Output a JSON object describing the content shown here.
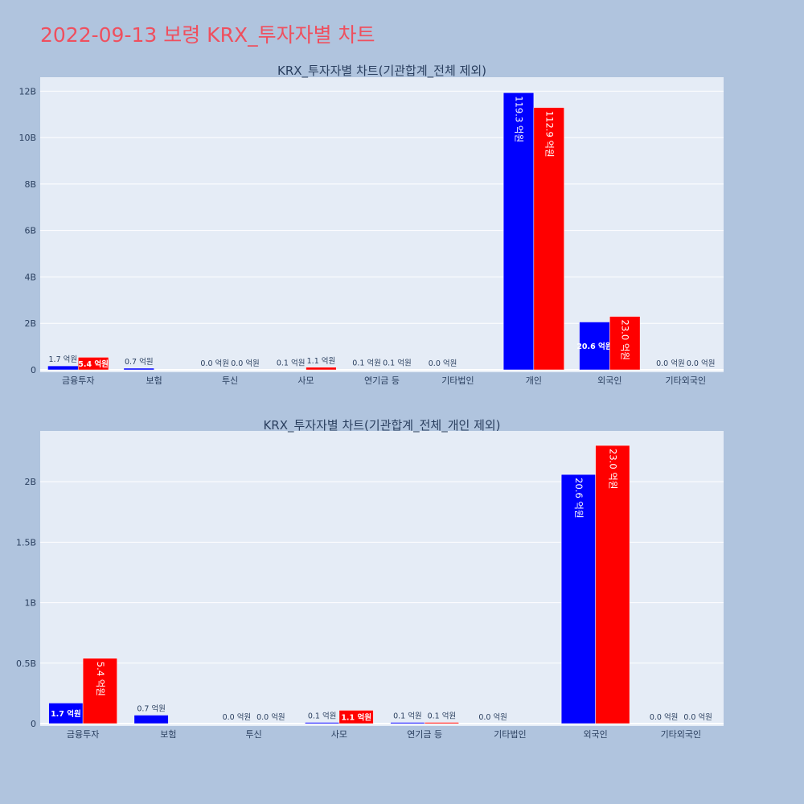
{
  "page": {
    "title": "2022-09-13 보령 KRX_투자자별 차트"
  },
  "colors": {
    "background": "#b0c4de",
    "plot_bg": "#e5ecf6",
    "title": "#ef4f5e",
    "series_a": "#0000ff",
    "series_b": "#ff0000"
  },
  "chart_data": [
    {
      "type": "bar",
      "title": "KRX_투자자별 차트(기관합계_전체 제외)",
      "categories": [
        "금융투자",
        "보험",
        "투신",
        "사모",
        "연기금 등",
        "기타법인",
        "개인",
        "외국인",
        "기타외국인"
      ],
      "series": [
        {
          "color": "#0000ff",
          "values": [
            0.17,
            0.07,
            0.0,
            0.01,
            0.01,
            0.0,
            11.93,
            2.06,
            0.0
          ],
          "labels": [
            "1.7 억원",
            "0.7 억원",
            "0.0 억원",
            "0.1 억원",
            "0.1 억원",
            "0.0 억원",
            "119.3 억원",
            "20.6 억원",
            "0.0 억원"
          ]
        },
        {
          "color": "#ff0000",
          "values": [
            0.54,
            0.0,
            0.0,
            0.11,
            0.01,
            null,
            11.29,
            2.3,
            0.0
          ],
          "labels": [
            "5.4 억원",
            "",
            "0.0 억원",
            "1.1 억원",
            "0.1 억원",
            "",
            "112.9 억원",
            "23.0 억원",
            "0.0 억원"
          ]
        }
      ],
      "ylim": [
        0,
        12.6
      ],
      "yticks": [
        0,
        2,
        4,
        6,
        8,
        10,
        12
      ],
      "ytick_labels": [
        "0",
        "2B",
        "4B",
        "6B",
        "8B",
        "10B",
        "12B"
      ],
      "grid": true,
      "legend": "none"
    },
    {
      "type": "bar",
      "title": "KRX_투자자별 차트(기관합계_전체_개인 제외)",
      "categories": [
        "금융투자",
        "보험",
        "투신",
        "사모",
        "연기금 등",
        "기타법인",
        "외국인",
        "기타외국인"
      ],
      "series": [
        {
          "color": "#0000ff",
          "values": [
            0.17,
            0.07,
            0.0,
            0.01,
            0.01,
            0.0,
            2.06,
            0.0
          ],
          "labels": [
            "1.7 억원",
            "0.7 억원",
            "0.0 억원",
            "0.1 억원",
            "0.1 억원",
            "0.0 억원",
            "20.6 억원",
            "0.0 억원"
          ]
        },
        {
          "color": "#ff0000",
          "values": [
            0.54,
            0.0,
            0.0,
            0.11,
            0.01,
            null,
            2.3,
            0.0
          ],
          "labels": [
            "5.4 억원",
            "",
            "0.0 억원",
            "1.1 억원",
            "0.1 억원",
            "",
            "23.0 억원",
            "0.0 억원"
          ]
        }
      ],
      "ylim": [
        0,
        2.42
      ],
      "yticks": [
        0,
        0.5,
        1,
        1.5,
        2
      ],
      "ytick_labels": [
        "0",
        "0.5B",
        "1B",
        "1.5B",
        "2B"
      ],
      "grid": true,
      "legend": "none"
    }
  ]
}
